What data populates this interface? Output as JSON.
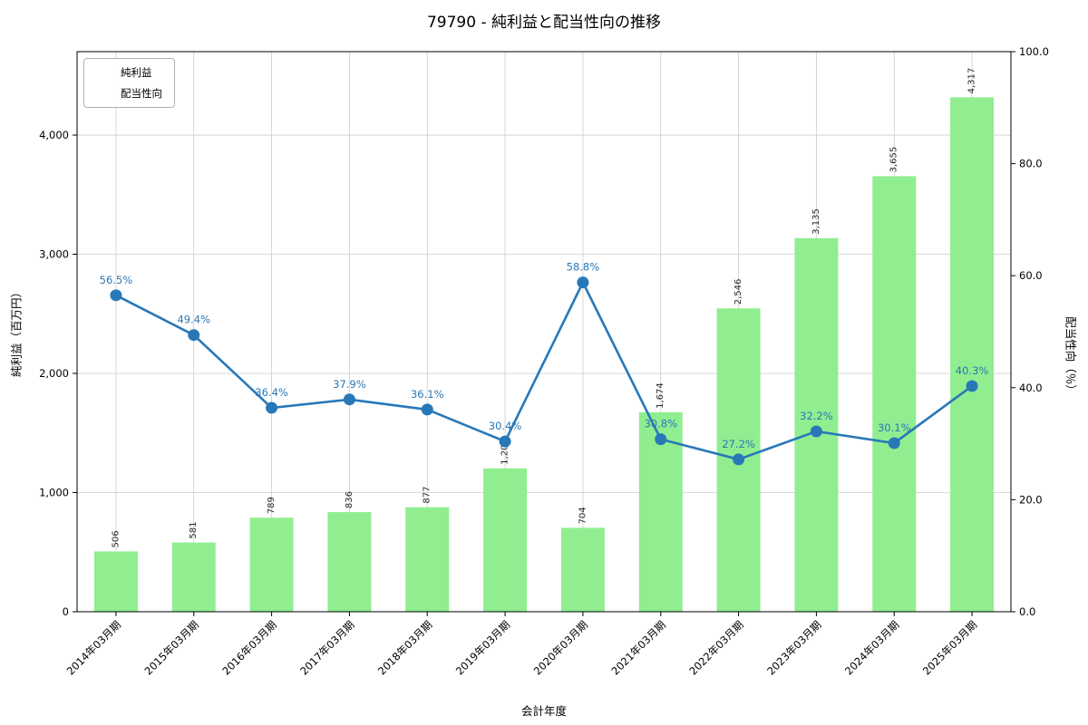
{
  "title": "79790 - 純利益と配当性向の推移",
  "colors": {
    "bar": "#90ee90",
    "line": "#2878b8",
    "percent_label": "#2878b8",
    "bar_label": "#262626",
    "grid": "#cccccc",
    "spine": "#000000",
    "tick_label": "#000000"
  },
  "axes": {
    "x_label": "会計年度",
    "y_left_label": "純利益（百万円）",
    "y_right_label": "配当性向（％）",
    "y_left_ticks": [
      "0",
      "1,000",
      "2,000",
      "3,000",
      "4,000"
    ],
    "y_left_tick_values": [
      0,
      1000,
      2000,
      3000,
      4000
    ],
    "y_left_max": 4700,
    "y_right_ticks": [
      "0.0",
      "20.0",
      "40.0",
      "60.0",
      "80.0",
      "100.0"
    ],
    "y_right_tick_values": [
      0,
      20,
      40,
      60,
      80,
      100
    ],
    "y_right_max": 100
  },
  "chart_data": {
    "type": "bar+line",
    "title": "79790 - 純利益と配当性向の推移",
    "xlabel": "会計年度",
    "ylabel_left": "純利益（百万円）",
    "ylabel_right": "配当性向（％）",
    "ylim_left": [
      0,
      4700
    ],
    "ylim_right": [
      0,
      100
    ],
    "grid": true,
    "legend_position": "upper-left",
    "categories": [
      "2014年03月期",
      "2015年03月期",
      "2016年03月期",
      "2017年03月期",
      "2018年03月期",
      "2019年03月期",
      "2020年03月期",
      "2021年03月期",
      "2022年03月期",
      "2023年03月期",
      "2024年03月期",
      "2025年03月期"
    ],
    "series": [
      {
        "name": "純利益",
        "type": "bar",
        "values": [
          506,
          581,
          789,
          836,
          877,
          1203,
          704,
          1674,
          2546,
          3135,
          3655,
          4317
        ],
        "labels": [
          "506",
          "581",
          "789",
          "836",
          "877",
          "1,203",
          "704",
          "1,674",
          "2,546",
          "3,135",
          "3,655",
          "4,317"
        ]
      },
      {
        "name": "配当性向",
        "type": "line",
        "values": [
          56.5,
          49.4,
          36.4,
          37.9,
          36.1,
          30.4,
          58.8,
          30.8,
          27.2,
          32.2,
          30.1,
          40.3
        ],
        "labels": [
          "56.5%",
          "49.4%",
          "36.4%",
          "37.9%",
          "36.1%",
          "30.4%",
          "58.8%",
          "30.8%",
          "27.2%",
          "32.2%",
          "30.1%",
          "40.3%"
        ]
      }
    ]
  }
}
